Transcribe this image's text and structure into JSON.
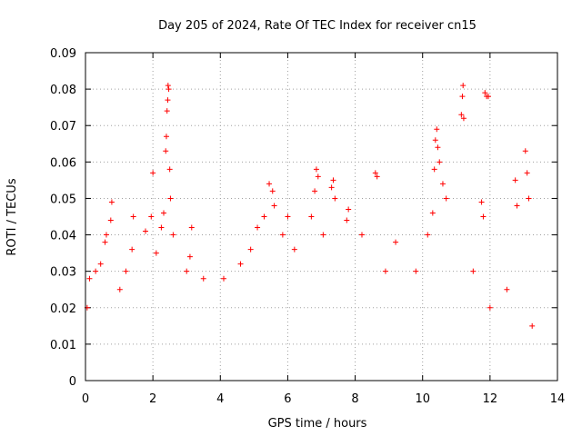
{
  "chart_data": {
    "type": "scatter",
    "title": "Day 205 of 2024, Rate Of TEC Index for receiver cn15",
    "xlabel": "GPS time / hours",
    "ylabel": "ROTI / TECUs",
    "xlim": [
      0,
      14
    ],
    "ylim": [
      0,
      0.09
    ],
    "x_ticks": [
      "0",
      "2",
      "4",
      "6",
      "8",
      "10",
      "12",
      "14"
    ],
    "y_ticks": [
      "0",
      "0.01",
      "0.02",
      "0.03",
      "0.04",
      "0.05",
      "0.06",
      "0.07",
      "0.08",
      "0.09"
    ],
    "grid": true,
    "marker": "plus",
    "color": "#ff0000",
    "data_x_range": [
      0,
      13.3
    ],
    "series": [
      {
        "name": "ROTI",
        "points": [
          [
            0.05,
            0.02
          ],
          [
            0.12,
            0.028
          ],
          [
            0.3,
            0.03
          ],
          [
            0.45,
            0.032
          ],
          [
            0.58,
            0.038
          ],
          [
            0.62,
            0.04
          ],
          [
            0.75,
            0.044
          ],
          [
            0.78,
            0.049
          ],
          [
            1.02,
            0.025
          ],
          [
            1.2,
            0.03
          ],
          [
            1.38,
            0.036
          ],
          [
            1.42,
            0.045
          ],
          [
            1.78,
            0.041
          ],
          [
            1.95,
            0.045
          ],
          [
            2.0,
            0.057
          ],
          [
            2.1,
            0.035
          ],
          [
            2.25,
            0.042
          ],
          [
            2.32,
            0.046
          ],
          [
            2.38,
            0.063
          ],
          [
            2.4,
            0.067
          ],
          [
            2.42,
            0.074
          ],
          [
            2.44,
            0.077
          ],
          [
            2.45,
            0.081
          ],
          [
            2.47,
            0.08
          ],
          [
            2.5,
            0.058
          ],
          [
            2.52,
            0.05
          ],
          [
            2.6,
            0.04
          ],
          [
            3.0,
            0.03
          ],
          [
            3.1,
            0.034
          ],
          [
            3.15,
            0.042
          ],
          [
            3.5,
            0.028
          ],
          [
            4.1,
            0.028
          ],
          [
            4.6,
            0.032
          ],
          [
            4.9,
            0.036
          ],
          [
            5.1,
            0.042
          ],
          [
            5.3,
            0.045
          ],
          [
            5.45,
            0.054
          ],
          [
            5.55,
            0.052
          ],
          [
            5.6,
            0.048
          ],
          [
            5.85,
            0.04
          ],
          [
            6.0,
            0.045
          ],
          [
            6.2,
            0.036
          ],
          [
            6.7,
            0.045
          ],
          [
            6.8,
            0.052
          ],
          [
            6.85,
            0.058
          ],
          [
            6.9,
            0.056
          ],
          [
            7.05,
            0.04
          ],
          [
            7.3,
            0.053
          ],
          [
            7.35,
            0.055
          ],
          [
            7.4,
            0.05
          ],
          [
            7.75,
            0.044
          ],
          [
            7.8,
            0.047
          ],
          [
            8.2,
            0.04
          ],
          [
            8.6,
            0.057
          ],
          [
            8.65,
            0.056
          ],
          [
            8.9,
            0.03
          ],
          [
            9.2,
            0.038
          ],
          [
            9.8,
            0.03
          ],
          [
            10.15,
            0.04
          ],
          [
            10.3,
            0.046
          ],
          [
            10.35,
            0.058
          ],
          [
            10.38,
            0.066
          ],
          [
            10.42,
            0.069
          ],
          [
            10.45,
            0.064
          ],
          [
            10.5,
            0.06
          ],
          [
            10.6,
            0.054
          ],
          [
            10.7,
            0.05
          ],
          [
            11.15,
            0.073
          ],
          [
            11.18,
            0.078
          ],
          [
            11.2,
            0.081
          ],
          [
            11.22,
            0.072
          ],
          [
            11.5,
            0.03
          ],
          [
            11.75,
            0.049
          ],
          [
            11.8,
            0.045
          ],
          [
            11.85,
            0.079
          ],
          [
            11.9,
            0.078
          ],
          [
            11.95,
            0.078
          ],
          [
            12.0,
            0.02
          ],
          [
            12.5,
            0.025
          ],
          [
            12.75,
            0.055
          ],
          [
            12.8,
            0.048
          ],
          [
            13.05,
            0.063
          ],
          [
            13.1,
            0.057
          ],
          [
            13.15,
            0.05
          ],
          [
            13.25,
            0.015
          ]
        ]
      }
    ]
  }
}
